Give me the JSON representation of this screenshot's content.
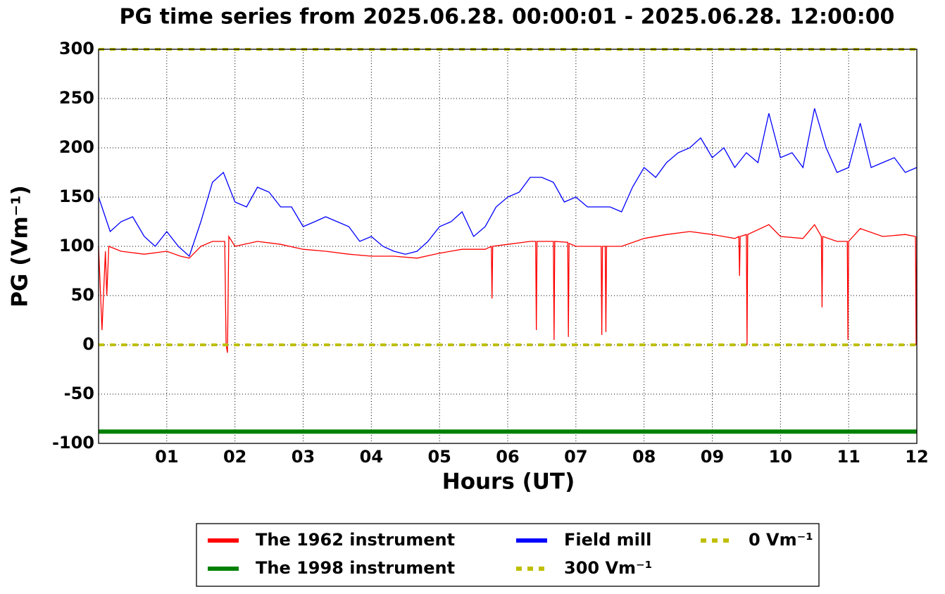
{
  "chart_data": {
    "type": "line",
    "title": "PG time series from 2025.06.28. 00:00:01 - 2025.06.28. 12:00:00",
    "xlabel": "Hours (UT)",
    "ylabel": "PG (Vm⁻¹)",
    "xlim": [
      0,
      12
    ],
    "ylim": [
      -100,
      300
    ],
    "xticks": [
      {
        "value": 1,
        "label": "01"
      },
      {
        "value": 2,
        "label": "02"
      },
      {
        "value": 3,
        "label": "03"
      },
      {
        "value": 4,
        "label": "04"
      },
      {
        "value": 5,
        "label": "05"
      },
      {
        "value": 6,
        "label": "06"
      },
      {
        "value": 7,
        "label": "07"
      },
      {
        "value": 8,
        "label": "08"
      },
      {
        "value": 9,
        "label": "09"
      },
      {
        "value": 10,
        "label": "10"
      },
      {
        "value": 11,
        "label": "11"
      },
      {
        "value": 12,
        "label": "12"
      }
    ],
    "yticks": [
      -100,
      -50,
      0,
      50,
      100,
      150,
      200,
      250,
      300
    ],
    "grid": true,
    "legend": "below",
    "series": [
      {
        "name": "The 1962 instrument",
        "color": "#ff0000",
        "x": [
          0,
          0.05,
          0.1,
          0.12,
          0.15,
          0.33,
          0.67,
          1.0,
          1.2,
          1.33,
          1.5,
          1.67,
          1.85,
          1.87,
          1.89,
          1.91,
          2.0,
          2.33,
          2.67,
          3.0,
          3.33,
          3.67,
          4.0,
          4.33,
          4.67,
          5.0,
          5.33,
          5.67,
          5.76,
          5.77,
          5.78,
          6.0,
          6.33,
          6.41,
          6.42,
          6.43,
          6.67,
          6.68,
          6.69,
          6.88,
          6.89,
          6.9,
          7.0,
          7.37,
          7.38,
          7.39,
          7.43,
          7.44,
          7.45,
          7.67,
          8.0,
          8.33,
          8.67,
          9.0,
          9.33,
          9.39,
          9.4,
          9.41,
          9.5,
          9.51,
          9.52,
          9.83,
          10.0,
          10.33,
          10.5,
          10.6,
          10.61,
          10.62,
          10.83,
          10.98,
          10.99,
          11.0,
          11.17,
          11.5,
          11.83,
          11.98,
          11.99,
          12.0
        ],
        "values": [
          100,
          15,
          95,
          50,
          100,
          95,
          92,
          95,
          90,
          88,
          100,
          105,
          105,
          0,
          -8,
          110,
          100,
          105,
          102,
          97,
          95,
          92,
          90,
          90,
          88,
          93,
          97,
          97,
          100,
          47,
          100,
          102,
          105,
          105,
          15,
          105,
          105,
          5,
          105,
          104,
          8,
          103,
          100,
          100,
          10,
          100,
          100,
          13,
          100,
          100,
          108,
          112,
          115,
          112,
          108,
          110,
          70,
          110,
          112,
          0,
          112,
          122,
          110,
          108,
          122,
          110,
          38,
          110,
          105,
          105,
          5,
          105,
          118,
          110,
          112,
          110,
          0,
          110
        ]
      },
      {
        "name": "The 1998 instrument",
        "color": "#008000",
        "width": 6,
        "x": [
          0,
          12
        ],
        "values": [
          -88,
          -88
        ]
      },
      {
        "name": "Field mill",
        "color": "#0000ff",
        "x": [
          0,
          0.17,
          0.33,
          0.5,
          0.67,
          0.83,
          1.0,
          1.17,
          1.33,
          1.5,
          1.67,
          1.83,
          2.0,
          2.17,
          2.33,
          2.5,
          2.67,
          2.83,
          3.0,
          3.17,
          3.33,
          3.5,
          3.67,
          3.83,
          4.0,
          4.17,
          4.33,
          4.5,
          4.67,
          4.83,
          5.0,
          5.17,
          5.33,
          5.5,
          5.67,
          5.83,
          6.0,
          6.17,
          6.33,
          6.5,
          6.67,
          6.83,
          7.0,
          7.17,
          7.33,
          7.5,
          7.67,
          7.83,
          8.0,
          8.17,
          8.33,
          8.5,
          8.67,
          8.83,
          9.0,
          9.17,
          9.33,
          9.5,
          9.67,
          9.83,
          10.0,
          10.17,
          10.33,
          10.5,
          10.67,
          10.83,
          11.0,
          11.17,
          11.33,
          11.5,
          11.67,
          11.83,
          12.0
        ],
        "values": [
          150,
          115,
          125,
          130,
          110,
          100,
          115,
          100,
          90,
          125,
          165,
          175,
          145,
          140,
          160,
          155,
          140,
          140,
          120,
          125,
          130,
          125,
          120,
          105,
          110,
          100,
          95,
          92,
          95,
          105,
          120,
          125,
          135,
          110,
          120,
          140,
          150,
          155,
          170,
          170,
          165,
          145,
          150,
          140,
          140,
          140,
          135,
          160,
          180,
          170,
          185,
          195,
          200,
          210,
          190,
          200,
          180,
          195,
          185,
          235,
          190,
          195,
          180,
          240,
          200,
          175,
          180,
          225,
          180,
          185,
          190,
          175,
          180
        ]
      },
      {
        "name": "300 Vm⁻¹",
        "color": "#bfbf00",
        "width": 4,
        "dash": true,
        "x": [
          0,
          12
        ],
        "values": [
          300,
          300
        ]
      },
      {
        "name": "0 Vm⁻¹",
        "color": "#bfbf00",
        "width": 4,
        "dash": true,
        "x": [
          0,
          12
        ],
        "values": [
          0,
          0
        ]
      }
    ]
  }
}
